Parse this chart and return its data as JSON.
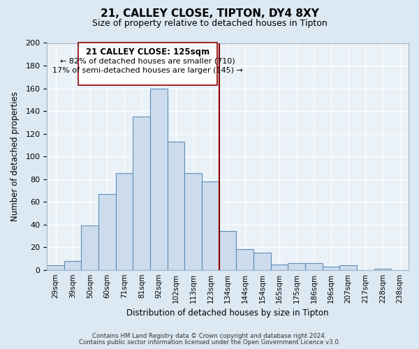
{
  "title": "21, CALLEY CLOSE, TIPTON, DY4 8XY",
  "subtitle": "Size of property relative to detached houses in Tipton",
  "xlabel": "Distribution of detached houses by size in Tipton",
  "ylabel": "Number of detached properties",
  "footnote1": "Contains HM Land Registry data © Crown copyright and database right 2024.",
  "footnote2": "Contains public sector information licensed under the Open Government Licence v3.0.",
  "bin_labels": [
    "29sqm",
    "39sqm",
    "50sqm",
    "60sqm",
    "71sqm",
    "81sqm",
    "92sqm",
    "102sqm",
    "113sqm",
    "123sqm",
    "134sqm",
    "144sqm",
    "154sqm",
    "165sqm",
    "175sqm",
    "186sqm",
    "196sqm",
    "207sqm",
    "217sqm",
    "228sqm",
    "238sqm"
  ],
  "bar_values": [
    4,
    8,
    39,
    67,
    85,
    135,
    160,
    113,
    85,
    78,
    34,
    18,
    15,
    5,
    6,
    6,
    3,
    4,
    0,
    1,
    0
  ],
  "bar_color": "#ccdcec",
  "bar_edge_color": "#5b8db8",
  "vline_x": 9.5,
  "vline_color": "#8b0000",
  "annotation_title": "21 CALLEY CLOSE: 125sqm",
  "annotation_line1": "← 82% of detached houses are smaller (710)",
  "annotation_line2": "17% of semi-detached houses are larger (145) →",
  "annotation_box_color": "#ffffff",
  "annotation_box_edge": "#8b0000",
  "ylim": [
    0,
    200
  ],
  "yticks": [
    0,
    20,
    40,
    60,
    80,
    100,
    120,
    140,
    160,
    180,
    200
  ],
  "bg_color": "#dce8f2",
  "plot_bg_color": "#eaf2f8",
  "grid_color": "#ffffff"
}
